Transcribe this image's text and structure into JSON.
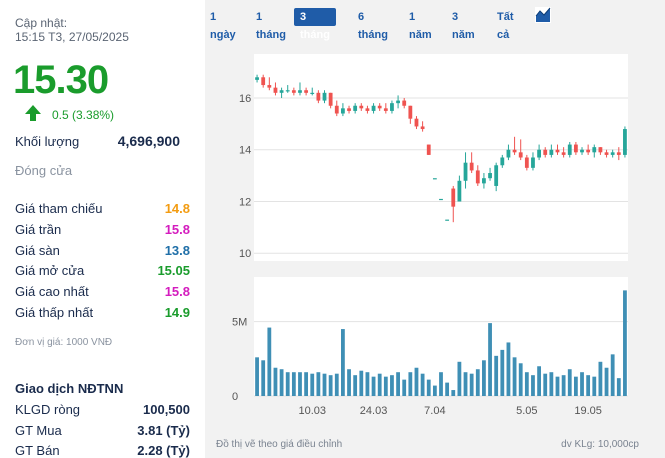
{
  "update": {
    "label": "Cập nhật:",
    "time": "15:15 T3, 27/05/2025"
  },
  "price": {
    "value": "15.30",
    "change": "0.5 (3.38%)",
    "color": "#1a9c2c"
  },
  "volume": {
    "label": "Khối lượng",
    "value": "4,696,900"
  },
  "close": {
    "label": "Đóng cửa"
  },
  "stats": [
    {
      "label": "Giá tham chiếu",
      "value": "14.8",
      "color": "#f39c12"
    },
    {
      "label": "Giá trần",
      "value": "15.8",
      "color": "#d41cbe"
    },
    {
      "label": "Giá sàn",
      "value": "13.8",
      "color": "#1f6fa8"
    },
    {
      "label": "Giá mở cửa",
      "value": "15.05",
      "color": "#1a9c2c"
    },
    {
      "label": "Giá cao nhất",
      "value": "15.8",
      "color": "#d41cbe"
    },
    {
      "label": "Giá thấp nhất",
      "value": "14.9",
      "color": "#1a9c2c"
    }
  ],
  "unit_note": "Đơn vị giá: 1000 VNĐ",
  "foreign": {
    "title": "Giao dịch NĐTNN",
    "rows": [
      {
        "label": "KLGD ròng",
        "value": "100,500"
      },
      {
        "label": "GT Mua",
        "value": "3.81 (Tỷ)"
      },
      {
        "label": "GT Bán",
        "value": "2.28 (Tỷ)"
      }
    ]
  },
  "tabs": [
    {
      "label": "1 ngày",
      "active": false
    },
    {
      "label": "1 tháng",
      "active": false
    },
    {
      "label": "3 tháng",
      "active": true
    },
    {
      "label": "6 tháng",
      "active": false
    },
    {
      "label": "1 năm",
      "active": false
    },
    {
      "label": "3 năm",
      "active": false
    },
    {
      "label": "Tất cả",
      "active": false
    }
  ],
  "chart_icon": "area-chart-icon",
  "footer": {
    "left": "Đồ thị vẽ theo giá điều chỉnh",
    "right": "dv KLg: 10,000cp"
  },
  "chart_data": {
    "type": "candlestick",
    "price_axis": {
      "ticks": [
        10,
        12,
        14,
        16
      ],
      "range": [
        9.7,
        17.7
      ]
    },
    "volume_axis": {
      "ticks": [
        "0",
        "5M"
      ],
      "tick_values": [
        0,
        5
      ],
      "range": [
        0,
        8
      ]
    },
    "x_ticks": [
      {
        "label": "10.03",
        "index": 9
      },
      {
        "label": "24.03",
        "index": 19
      },
      {
        "label": "7.04",
        "index": 29
      },
      {
        "label": "5.05",
        "index": 44
      },
      {
        "label": "19.05",
        "index": 54
      }
    ],
    "colors": {
      "up": "#26a69a",
      "down": "#ef5350",
      "volume": "#3f8fb5"
    },
    "candles": [
      {
        "o": 16.7,
        "h": 16.9,
        "l": 16.6,
        "c": 16.8
      },
      {
        "o": 16.8,
        "h": 16.9,
        "l": 16.4,
        "c": 16.5
      },
      {
        "o": 16.5,
        "h": 16.8,
        "l": 16.3,
        "c": 16.4
      },
      {
        "o": 16.4,
        "h": 16.6,
        "l": 16.1,
        "c": 16.2
      },
      {
        "o": 16.2,
        "h": 16.4,
        "l": 16.0,
        "c": 16.3
      },
      {
        "o": 16.3,
        "h": 16.5,
        "l": 16.2,
        "c": 16.3
      },
      {
        "o": 16.3,
        "h": 16.4,
        "l": 16.1,
        "c": 16.2
      },
      {
        "o": 16.2,
        "h": 16.6,
        "l": 16.1,
        "c": 16.3
      },
      {
        "o": 16.3,
        "h": 16.4,
        "l": 16.1,
        "c": 16.2
      },
      {
        "o": 16.2,
        "h": 16.4,
        "l": 16.1,
        "c": 16.2
      },
      {
        "o": 16.2,
        "h": 16.3,
        "l": 15.8,
        "c": 15.9
      },
      {
        "o": 15.9,
        "h": 16.3,
        "l": 15.8,
        "c": 16.2
      },
      {
        "o": 16.2,
        "h": 16.2,
        "l": 15.6,
        "c": 15.7
      },
      {
        "o": 15.7,
        "h": 15.9,
        "l": 15.3,
        "c": 15.4
      },
      {
        "o": 15.4,
        "h": 15.8,
        "l": 15.3,
        "c": 15.6
      },
      {
        "o": 15.6,
        "h": 15.7,
        "l": 15.4,
        "c": 15.5
      },
      {
        "o": 15.5,
        "h": 15.8,
        "l": 15.4,
        "c": 15.7
      },
      {
        "o": 15.7,
        "h": 15.8,
        "l": 15.5,
        "c": 15.6
      },
      {
        "o": 15.6,
        "h": 15.7,
        "l": 15.4,
        "c": 15.5
      },
      {
        "o": 15.5,
        "h": 15.8,
        "l": 15.4,
        "c": 15.7
      },
      {
        "o": 15.7,
        "h": 15.8,
        "l": 15.5,
        "c": 15.6
      },
      {
        "o": 15.6,
        "h": 15.8,
        "l": 15.4,
        "c": 15.5
      },
      {
        "o": 15.5,
        "h": 15.9,
        "l": 15.4,
        "c": 15.8
      },
      {
        "o": 15.8,
        "h": 16.1,
        "l": 15.6,
        "c": 15.9
      },
      {
        "o": 15.9,
        "h": 16.0,
        "l": 15.6,
        "c": 15.7
      },
      {
        "o": 15.7,
        "h": 15.7,
        "l": 15.0,
        "c": 15.2
      },
      {
        "o": 15.2,
        "h": 15.3,
        "l": 14.8,
        "c": 14.9
      },
      {
        "o": 14.9,
        "h": 15.1,
        "l": 14.7,
        "c": 14.8
      },
      {
        "o": 14.2,
        "h": 14.2,
        "l": 13.8,
        "c": 13.8
      },
      {
        "o": 12.9,
        "h": 12.9,
        "l": 12.9,
        "c": 12.9
      },
      {
        "o": 12.1,
        "h": 12.1,
        "l": 12.1,
        "c": 12.1
      },
      {
        "o": 11.3,
        "h": 11.3,
        "l": 11.3,
        "c": 11.3
      },
      {
        "o": 12.5,
        "h": 12.6,
        "l": 11.2,
        "c": 11.8
      },
      {
        "o": 12.0,
        "h": 13.0,
        "l": 12.0,
        "c": 12.8
      },
      {
        "o": 12.8,
        "h": 13.9,
        "l": 12.5,
        "c": 13.5
      },
      {
        "o": 13.5,
        "h": 13.9,
        "l": 13.1,
        "c": 13.2
      },
      {
        "o": 13.2,
        "h": 13.4,
        "l": 12.6,
        "c": 12.7
      },
      {
        "o": 12.7,
        "h": 13.1,
        "l": 12.5,
        "c": 12.9
      },
      {
        "o": 12.9,
        "h": 13.3,
        "l": 12.8,
        "c": 13.1
      },
      {
        "o": 12.6,
        "h": 13.5,
        "l": 12.4,
        "c": 13.4
      },
      {
        "o": 13.4,
        "h": 13.8,
        "l": 13.3,
        "c": 13.7
      },
      {
        "o": 13.7,
        "h": 14.2,
        "l": 13.6,
        "c": 14.0
      },
      {
        "o": 14.0,
        "h": 14.5,
        "l": 13.8,
        "c": 13.9
      },
      {
        "o": 13.9,
        "h": 14.4,
        "l": 13.6,
        "c": 13.7
      },
      {
        "o": 13.7,
        "h": 13.8,
        "l": 13.2,
        "c": 13.3
      },
      {
        "o": 13.3,
        "h": 13.9,
        "l": 13.2,
        "c": 13.7
      },
      {
        "o": 13.7,
        "h": 14.2,
        "l": 13.6,
        "c": 14.0
      },
      {
        "o": 14.0,
        "h": 14.1,
        "l": 13.7,
        "c": 13.8
      },
      {
        "o": 13.8,
        "h": 14.2,
        "l": 13.7,
        "c": 14.0
      },
      {
        "o": 14.0,
        "h": 14.2,
        "l": 13.8,
        "c": 13.9
      },
      {
        "o": 13.9,
        "h": 14.1,
        "l": 13.7,
        "c": 13.8
      },
      {
        "o": 13.8,
        "h": 14.3,
        "l": 13.7,
        "c": 14.2
      },
      {
        "o": 14.2,
        "h": 14.3,
        "l": 13.8,
        "c": 13.9
      },
      {
        "o": 13.9,
        "h": 14.1,
        "l": 13.8,
        "c": 14.0
      },
      {
        "o": 14.0,
        "h": 14.2,
        "l": 13.8,
        "c": 13.9
      },
      {
        "o": 13.9,
        "h": 14.2,
        "l": 13.7,
        "c": 14.1
      },
      {
        "o": 14.1,
        "h": 14.1,
        "l": 13.8,
        "c": 13.9
      },
      {
        "o": 13.9,
        "h": 14.0,
        "l": 13.7,
        "c": 13.8
      },
      {
        "o": 13.8,
        "h": 14.0,
        "l": 13.7,
        "c": 13.9
      },
      {
        "o": 13.9,
        "h": 14.1,
        "l": 13.6,
        "c": 13.8
      },
      {
        "o": 13.8,
        "h": 14.9,
        "l": 13.7,
        "c": 14.8
      }
    ],
    "volumes": [
      2.6,
      2.4,
      4.6,
      1.9,
      1.8,
      1.6,
      1.6,
      1.6,
      1.6,
      1.5,
      1.6,
      1.5,
      1.4,
      1.5,
      4.5,
      1.8,
      1.4,
      1.7,
      1.6,
      1.3,
      1.5,
      1.3,
      1.4,
      1.6,
      1.1,
      1.6,
      1.9,
      1.5,
      1.1,
      0.7,
      1.6,
      0.9,
      0.4,
      2.3,
      1.6,
      1.5,
      1.8,
      2.4,
      4.9,
      2.7,
      3.1,
      3.6,
      2.6,
      2.2,
      1.6,
      1.4,
      2.0,
      1.5,
      1.6,
      1.3,
      1.4,
      1.8,
      1.3,
      1.6,
      1.4,
      1.3,
      2.3,
      1.9,
      2.8,
      1.2,
      7.1
    ]
  }
}
